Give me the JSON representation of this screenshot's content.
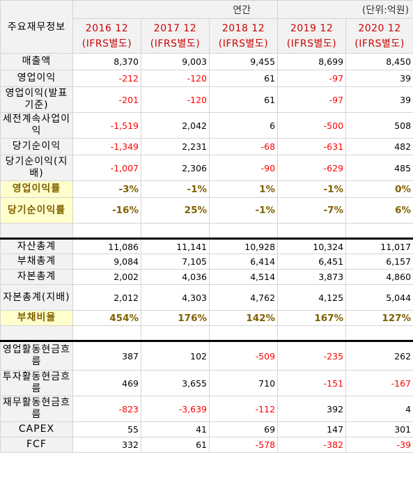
{
  "header": {
    "corner_label": "주요재무정보",
    "period_label": "연간",
    "unit_label": "(단위:억원)",
    "years": [
      {
        "year": "2016 12",
        "basis": "(IFRS별도)"
      },
      {
        "year": "2017 12",
        "basis": "(IFRS별도)"
      },
      {
        "year": "2018 12",
        "basis": "(IFRS별도)"
      },
      {
        "year": "2019 12",
        "basis": "(IFRS별도)"
      },
      {
        "year": "2020 12",
        "basis": "(IFRS별도)"
      }
    ]
  },
  "rows": [
    {
      "label": "매출액",
      "values": [
        "8,370",
        "9,003",
        "9,455",
        "8,699",
        "8,450"
      ]
    },
    {
      "label": "영업이익",
      "values": [
        "-212",
        "-120",
        "61",
        "-97",
        "39"
      ]
    },
    {
      "label": "영업이익(발표기준)",
      "values": [
        "-201",
        "-120",
        "61",
        "-97",
        "39"
      ]
    },
    {
      "label": "세전계속사업이익",
      "values": [
        "-1,519",
        "2,042",
        "6",
        "-500",
        "508"
      ]
    },
    {
      "label": "당기순이익",
      "values": [
        "-1,349",
        "2,231",
        "-68",
        "-631",
        "482"
      ]
    },
    {
      "label": "당기순이익(지배)",
      "values": [
        "-1,007",
        "2,306",
        "-90",
        "-629",
        "485"
      ]
    },
    {
      "label": "영업이익률",
      "values": [
        "-3%",
        "-1%",
        "1%",
        "-1%",
        "0%"
      ]
    },
    {
      "label": "당기순이익률",
      "values": [
        "-16%",
        "25%",
        "-1%",
        "-7%",
        "6%"
      ]
    },
    {
      "label": "자산총계",
      "values": [
        "11,086",
        "11,141",
        "10,928",
        "10,324",
        "11,017"
      ]
    },
    {
      "label": "부채총계",
      "values": [
        "9,084",
        "7,105",
        "6,414",
        "6,451",
        "6,157"
      ]
    },
    {
      "label": "자본총계",
      "values": [
        "2,002",
        "4,036",
        "4,514",
        "3,873",
        "4,860"
      ]
    },
    {
      "label": "자본총계(지배)",
      "values": [
        "2,012",
        "4,303",
        "4,762",
        "4,125",
        "5,044"
      ]
    },
    {
      "label": "부채비율",
      "values": [
        "454%",
        "176%",
        "142%",
        "167%",
        "127%"
      ]
    },
    {
      "label": "영업활동현금흐름",
      "values": [
        "387",
        "102",
        "-509",
        "-235",
        "262"
      ]
    },
    {
      "label": "투자활동현금흐름",
      "values": [
        "469",
        "3,655",
        "710",
        "-151",
        "-167"
      ]
    },
    {
      "label": "재무활동현금흐름",
      "values": [
        "-823",
        "-3,639",
        "-112",
        "392",
        "4"
      ]
    },
    {
      "label": "CAPEX",
      "values": [
        "55",
        "41",
        "69",
        "147",
        "301"
      ]
    },
    {
      "label": "FCF",
      "values": [
        "332",
        "61",
        "-578",
        "-382",
        "-39"
      ]
    }
  ],
  "colors": {
    "negative": "#ff0000",
    "header_year": "#cc0000",
    "ratio_text": "#7f6000",
    "ratio_label_bg": "#ffffcc",
    "label_bg": "#f2f2f2"
  }
}
